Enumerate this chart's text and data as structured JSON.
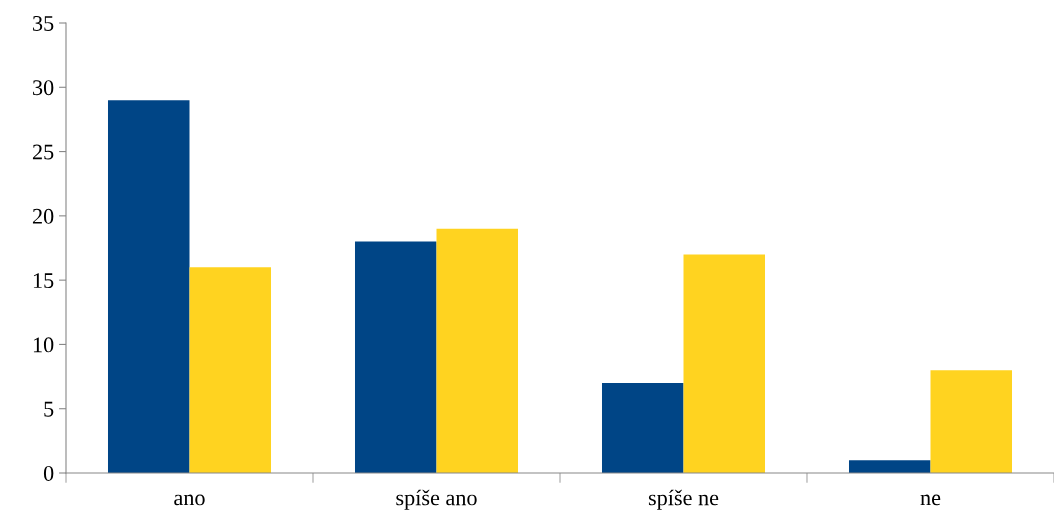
{
  "chart_data": {
    "type": "bar",
    "categories": [
      "ano",
      "spíše ano",
      "spíše ne",
      "ne"
    ],
    "series": [
      {
        "color": "#004586",
        "values": [
          29,
          18,
          7,
          1
        ]
      },
      {
        "color": "#ffd320",
        "values": [
          16,
          19,
          17,
          8
        ]
      }
    ],
    "ylim": [
      0,
      35
    ],
    "yticks": [
      0,
      5,
      10,
      15,
      20,
      25,
      30,
      35
    ],
    "grid": false,
    "legend": false
  }
}
